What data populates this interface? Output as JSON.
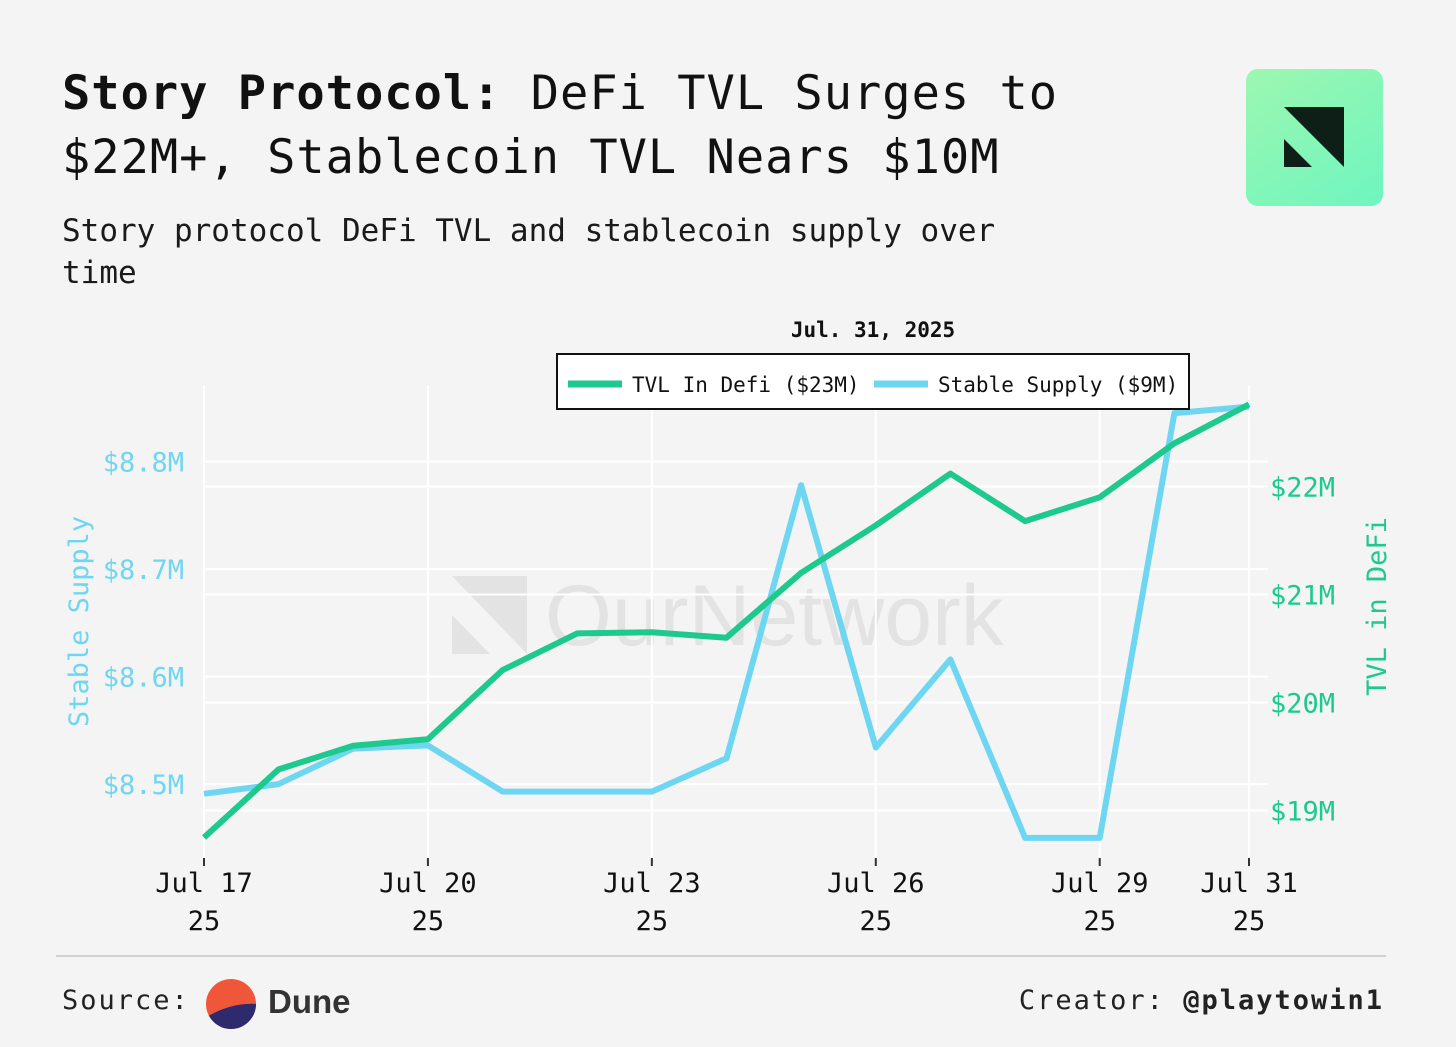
{
  "header": {
    "title_bold": "Story Protocol:",
    "title_rest": " DeFi TVL Surges to $22M+, Stablecoin TVL Nears $10M",
    "subtitle": "Story protocol DeFi TVL and stablecoin supply over time"
  },
  "footer": {
    "source_label": "Source:",
    "source_name": "Dune",
    "creator_label": "Creator:",
    "creator_handle": "@playtowin1"
  },
  "colors": {
    "tvl": "#1ec98e",
    "stable": "#6fd6f2",
    "grid": "#ffffff",
    "background": "#f4f4f4"
  },
  "chart_data": {
    "type": "line",
    "watermark": "OurNetwork",
    "hover_label": "Jul. 31, 2025",
    "x": [
      "Jul 17 25",
      "Jul 18 25",
      "Jul 19 25",
      "Jul 20 25",
      "Jul 21 25",
      "Jul 22 25",
      "Jul 23 25",
      "Jul 24 25",
      "Jul 25 25",
      "Jul 26 25",
      "Jul 27 25",
      "Jul 28 25",
      "Jul 29 25",
      "Jul 30 25",
      "Jul 31 25"
    ],
    "x_ticks": [
      {
        "index": 0,
        "line1": "Jul 17",
        "line2": "25"
      },
      {
        "index": 3,
        "line1": "Jul 20",
        "line2": "25"
      },
      {
        "index": 6,
        "line1": "Jul 23",
        "line2": "25"
      },
      {
        "index": 9,
        "line1": "Jul 26",
        "line2": "25"
      },
      {
        "index": 12,
        "line1": "Jul 29",
        "line2": "25"
      },
      {
        "index": 14,
        "line1": "Jul 31",
        "line2": "25"
      }
    ],
    "series": [
      {
        "name": "TVL In Defi",
        "legend": "TVL In Defi ($23M)",
        "axis": "right",
        "values": [
          18.75,
          19.38,
          19.6,
          19.66,
          20.3,
          20.64,
          20.65,
          20.6,
          21.2,
          21.64,
          22.12,
          21.68,
          21.9,
          22.4,
          22.76
        ]
      },
      {
        "name": "Stable Supply",
        "legend": "Stable Supply ($9M)",
        "axis": "left",
        "values": [
          8.491,
          8.5,
          8.533,
          8.536,
          8.493,
          8.493,
          8.493,
          8.524,
          8.778,
          8.534,
          8.616,
          8.45,
          8.45,
          8.845,
          8.851
        ]
      }
    ],
    "y_left": {
      "label": "Stable Supply",
      "range": [
        8.4313,
        8.8711
      ],
      "ticks": [
        {
          "value": 8.5,
          "label": "$8.5M"
        },
        {
          "value": 8.6,
          "label": "$8.6M"
        },
        {
          "value": 8.7,
          "label": "$8.7M"
        },
        {
          "value": 8.8,
          "label": "$8.8M"
        }
      ]
    },
    "y_right": {
      "label": "TVL in DeFi",
      "range": [
        18.56,
        22.94
      ],
      "ticks": [
        {
          "value": 19,
          "label": "$19M"
        },
        {
          "value": 20,
          "label": "$20M"
        },
        {
          "value": 21,
          "label": "$21M"
        },
        {
          "value": 22,
          "label": "$22M"
        }
      ]
    }
  }
}
